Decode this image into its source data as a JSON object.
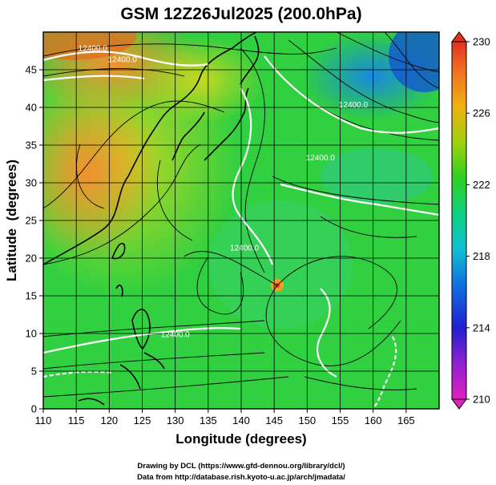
{
  "title": "GSM 12Z26Jul2025 (200.0hPa)",
  "colors": {
    "cool": "#1a2fd8",
    "mid": "#18d060",
    "warm": "#f0a020",
    "hot": "#e04020",
    "contour": "#ffffff",
    "coast": "#000000"
  },
  "chart_data": {
    "type": "map",
    "xlabel": "Longitude (degrees)",
    "ylabel": "Latitude  (degrees)",
    "xlim": [
      110,
      170
    ],
    "ylim": [
      0,
      50
    ],
    "xticks": [
      110,
      115,
      120,
      125,
      130,
      135,
      140,
      145,
      150,
      155,
      160,
      165
    ],
    "yticks": [
      0,
      5,
      10,
      15,
      20,
      25,
      30,
      35,
      40,
      45
    ],
    "grid": true,
    "colorbar": {
      "orientation": "vertical",
      "placement": "right",
      "ticks": [
        210,
        214,
        218,
        222,
        226,
        230
      ],
      "range": [
        210,
        230
      ]
    },
    "contour_labels": [
      {
        "text": "12400.0",
        "lon": 117.5,
        "lat": 47.5
      },
      {
        "text": "12400.0",
        "lon": 122.0,
        "lat": 46.0
      },
      {
        "text": "12400.0",
        "lon": 157.0,
        "lat": 40.0
      },
      {
        "text": "12400.0",
        "lon": 152.0,
        "lat": 33.0
      },
      {
        "text": "12400.0",
        "lon": 140.5,
        "lat": 21.0
      },
      {
        "text": "12400.0",
        "lon": 130.0,
        "lat": 9.5
      }
    ]
  },
  "credits": {
    "line1": "Drawing by DCL (https://www.gfd-dennou.org/library/dcl/)",
    "line2": "Data from http://database.rish.kyoto-u.ac.jp/arch/jmadata/"
  }
}
